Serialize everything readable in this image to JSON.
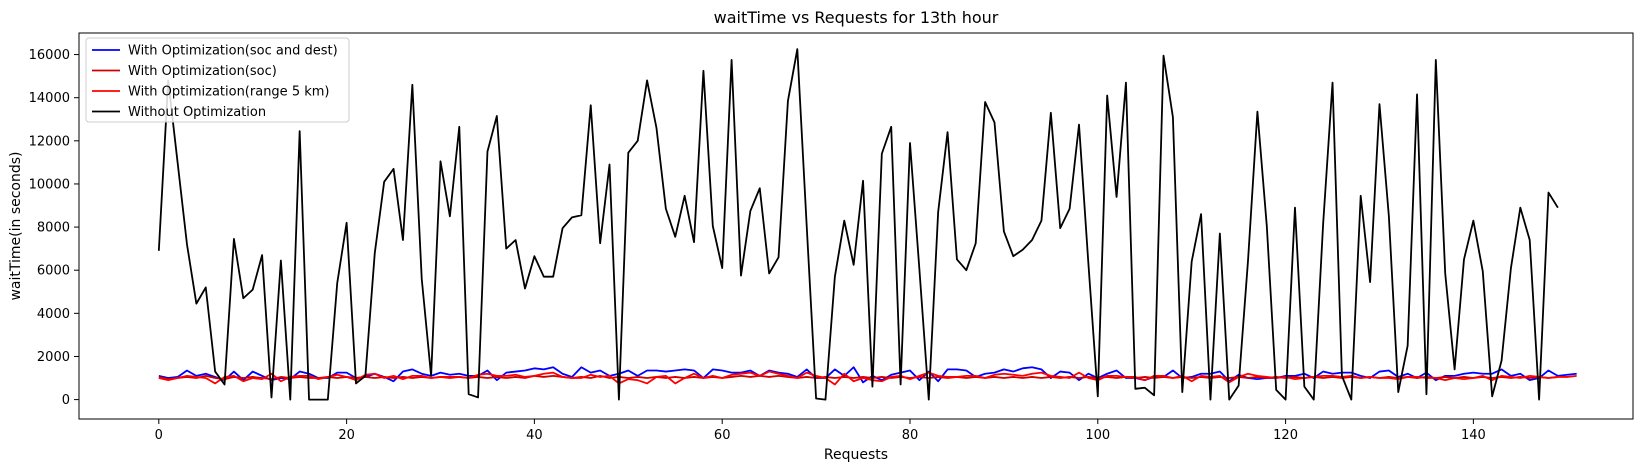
{
  "chart_data": {
    "type": "line",
    "title": "waitTime vs Requests for 13th hour",
    "xlabel": "Requests",
    "ylabel": "waitTime(in seconds)",
    "xlim": [
      -8.5,
      157
    ],
    "ylim": [
      -900,
      17000
    ],
    "xticks": [
      0,
      20,
      40,
      60,
      80,
      100,
      120,
      140
    ],
    "yticks": [
      0,
      2000,
      4000,
      6000,
      8000,
      10000,
      12000,
      14000,
      16000
    ],
    "grid": false,
    "legend_position": "top-left",
    "series": [
      {
        "name": "With Optimization(soc and dest)",
        "color": "#0000ff",
        "values": [
          1100,
          1000,
          1050,
          1350,
          1100,
          1200,
          1050,
          900,
          1300,
          900,
          1300,
          1100,
          900,
          1000,
          950,
          1300,
          1200,
          1000,
          1000,
          1250,
          1250,
          1000,
          1050,
          1200,
          1050,
          850,
          1300,
          1400,
          1200,
          1100,
          1250,
          1150,
          1200,
          1100,
          1100,
          1350,
          900,
          1250,
          1300,
          1350,
          1450,
          1400,
          1500,
          1200,
          1050,
          1500,
          1250,
          1350,
          1100,
          1200,
          1350,
          1100,
          1350,
          1350,
          1300,
          1350,
          1400,
          1350,
          1000,
          1400,
          1350,
          1250,
          1250,
          1350,
          1100,
          1350,
          1250,
          1200,
          1050,
          1400,
          1000,
          1000,
          1400,
          1100,
          1500,
          800,
          1100,
          900,
          1150,
          1250,
          1350,
          900,
          1300,
          850,
          1400,
          1400,
          1350,
          1050,
          1200,
          1250,
          1400,
          1300,
          1450,
          1500,
          1400,
          1000,
          1300,
          1250,
          900,
          1200,
          1000,
          1200,
          1350,
          1000,
          1000,
          900,
          1050,
          1050,
          1350,
          1000,
          1050,
          1200,
          1200,
          1300,
          850,
          1150,
          1000,
          950,
          1000,
          1000,
          1100,
          1100,
          1200,
          1000,
          1300,
          1200,
          1250,
          1250,
          1100,
          1000,
          1300,
          1350,
          1050,
          1200,
          1000,
          1250,
          900,
          1100,
          1100,
          1200,
          1250,
          1200,
          1200,
          1400,
          1100,
          1200,
          900,
          1000,
          1350,
          1100,
          1150,
          1200
        ]
      },
      {
        "name": "With Optimization(soc)",
        "color": "#cc0000",
        "values": [
          1050,
          950,
          1000,
          1050,
          1000,
          1100,
          1000,
          950,
          1050,
          1000,
          1050,
          1000,
          950,
          1050,
          1000,
          1050,
          1000,
          1000,
          1050,
          1000,
          1050,
          1000,
          1050,
          1000,
          1050,
          1000,
          1050,
          1000,
          1050,
          1000,
          1050,
          1000,
          1050,
          1000,
          1050,
          1000,
          1050,
          1000,
          1050,
          1000,
          1100,
          1050,
          1100,
          1050,
          1000,
          1050,
          1000,
          1100,
          1000,
          1050,
          1000,
          1050,
          1000,
          1050,
          1000,
          1050,
          1000,
          1050,
          1000,
          1050,
          1000,
          1050,
          1100,
          1050,
          1100,
          1050,
          1100,
          1050,
          1000,
          1050,
          1000,
          1050,
          1000,
          1050,
          1000,
          1050,
          1000,
          1050,
          1000,
          1050,
          1000,
          1050,
          1000,
          1050,
          1000,
          1050,
          1000,
          1050,
          1000,
          1050,
          1000,
          1050,
          1000,
          1050,
          1000,
          1050,
          1000,
          1050,
          1000,
          1050,
          1000,
          1050,
          1000,
          1050,
          1000,
          1050,
          1000,
          1050,
          1000,
          1050,
          1000,
          1050,
          1000,
          1050,
          1000,
          1050,
          1000,
          1050,
          1000,
          1050,
          1000,
          1050,
          1000,
          1050,
          1000,
          1050,
          1000,
          1050,
          1000,
          1050,
          1000,
          1050,
          1000,
          1050,
          1000,
          1050,
          1000,
          1050,
          1000,
          1050,
          1000,
          1050,
          1000,
          1050,
          1000,
          1050,
          1000,
          1050,
          1000,
          1050
        ]
      },
      {
        "name": "With Optimization(range 5 km)",
        "color": "#ff0000",
        "values": [
          1000,
          900,
          1000,
          1100,
          1050,
          1000,
          750,
          1050,
          1100,
          850,
          1000,
          950,
          1200,
          850,
          1050,
          1100,
          1100,
          950,
          1050,
          1150,
          1050,
          900,
          1150,
          1200,
          1000,
          1100,
          950,
          1100,
          1100,
          1000,
          1050,
          1050,
          1050,
          1000,
          1150,
          1200,
          1100,
          1100,
          1150,
          1050,
          1100,
          1200,
          1250,
          1050,
          1000,
          1000,
          1150,
          1050,
          1100,
          750,
          950,
          900,
          750,
          1050,
          1100,
          750,
          1000,
          1200,
          1000,
          1100,
          1000,
          1150,
          1200,
          1250,
          1100,
          1300,
          1200,
          1100,
          1000,
          1250,
          1100,
          1000,
          700,
          1200,
          850,
          1000,
          900,
          850,
          1050,
          1100,
          950,
          1100,
          1250,
          1100,
          1050,
          1050,
          1100,
          1100,
          1000,
          1150,
          1200,
          1150,
          1100,
          1200,
          1250,
          1100,
          1050,
          1000,
          1250,
          1000,
          900,
          1100,
          1100,
          1050,
          1050,
          900,
          1100,
          1100,
          1000,
          1100,
          850,
          1100,
          1050,
          1100,
          800,
          1050,
          1200,
          1100,
          1050,
          1000,
          1050,
          950,
          1000,
          1050,
          1100,
          1100,
          1050,
          1100,
          1000,
          1050,
          1000,
          1000,
          950,
          1050,
          1050,
          1000,
          1000,
          900,
          1000,
          950,
          1000,
          1100,
          900,
          1100,
          1050,
          1000,
          1100,
          1050,
          1000,
          1050,
          1050,
          1100
        ]
      },
      {
        "name": "Without Optimization",
        "color": "#000000",
        "values": [
          6900,
          14800,
          11000,
          7200,
          4450,
          5200,
          1300,
          700,
          7450,
          4700,
          5100,
          6700,
          100,
          6450,
          0,
          12450,
          0,
          0,
          0,
          5400,
          8200,
          750,
          1100,
          6800,
          10100,
          10700,
          7400,
          14600,
          5600,
          1100,
          11050,
          8500,
          12650,
          250,
          100,
          11500,
          13150,
          7000,
          7400,
          5150,
          6650,
          5700,
          5700,
          7950,
          8450,
          8550,
          13650,
          7250,
          10900,
          0,
          11450,
          12000,
          14800,
          12600,
          8850,
          7550,
          9450,
          7300,
          15250,
          8050,
          6100,
          15750,
          5750,
          8750,
          9800,
          5850,
          6600,
          13850,
          16250,
          8050,
          50,
          0,
          5700,
          8300,
          6250,
          10150,
          600,
          11400,
          12650,
          700,
          11900,
          6050,
          0,
          8700,
          12400,
          6500,
          6000,
          7250,
          13800,
          12850,
          7800,
          6650,
          6950,
          7400,
          8300,
          13300,
          7950,
          8850,
          12750,
          6300,
          150,
          14100,
          9400,
          14700,
          500,
          550,
          200,
          15950,
          13100,
          350,
          6400,
          8600,
          0,
          7700,
          0,
          650,
          6450,
          13350,
          8050,
          450,
          0,
          8900,
          600,
          0,
          8150,
          14700,
          1100,
          0,
          9450,
          5450,
          13700,
          8500,
          350,
          2500,
          14150,
          250,
          15750,
          5850,
          1400,
          6500,
          8300,
          5950,
          150,
          1800,
          6100,
          8900,
          7400,
          0,
          9600,
          8900
        ]
      }
    ]
  }
}
